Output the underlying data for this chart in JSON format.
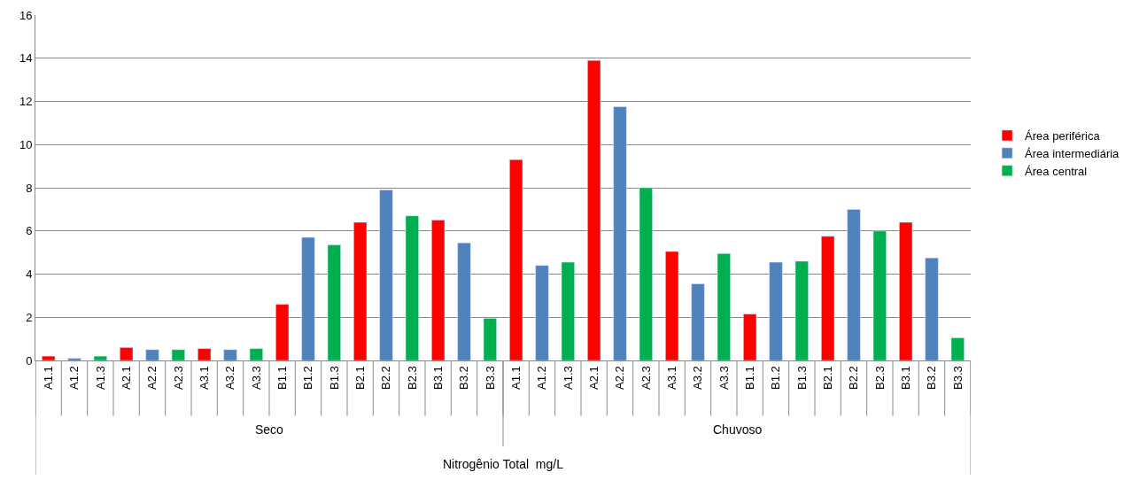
{
  "chart_data": {
    "type": "bar",
    "categories": [
      "A1.1",
      "A1.2",
      "A1.3",
      "A2.1",
      "A2.2",
      "A2.3",
      "A3.1",
      "A3.2",
      "A3.3",
      "B1.1",
      "B1.2",
      "B1.3",
      "B2.1",
      "B2.2",
      "B2.3",
      "B3.1",
      "B3.2",
      "B3.3",
      "A1.1",
      "A1.2",
      "A1.3",
      "A2.1",
      "A2.2",
      "A2.3",
      "A3.1",
      "A3.2",
      "A3.3",
      "B1.1",
      "B1.2",
      "B1.3",
      "B2.1",
      "B2.2",
      "B2.3",
      "B3.1",
      "B3.2",
      "B3.3"
    ],
    "annotations": [
      "Seco",
      "Chuvoso",
      "Nitrogênio Total  mg/L"
    ],
    "series": [
      {
        "name": "Área periférica",
        "color": "#ff0000",
        "values": [
          0.2,
          null,
          null,
          0.6,
          null,
          null,
          0.55,
          null,
          null,
          2.6,
          null,
          null,
          6.4,
          null,
          null,
          6.5,
          null,
          null,
          9.3,
          null,
          null,
          13.9,
          null,
          null,
          5.05,
          null,
          null,
          2.15,
          null,
          null,
          5.75,
          null,
          null,
          6.4,
          null,
          null
        ]
      },
      {
        "name": "Área intermediária",
        "color": "#4f81bd",
        "values": [
          null,
          0.1,
          null,
          null,
          0.5,
          null,
          null,
          0.5,
          null,
          null,
          5.7,
          null,
          null,
          7.9,
          null,
          null,
          5.45,
          null,
          null,
          4.4,
          null,
          null,
          11.75,
          null,
          null,
          3.55,
          null,
          null,
          4.55,
          null,
          null,
          7.0,
          null,
          null,
          4.75,
          null
        ]
      },
      {
        "name": "Área central",
        "color": "#00b050",
        "values": [
          null,
          null,
          0.2,
          null,
          null,
          0.5,
          null,
          null,
          0.55,
          null,
          null,
          5.35,
          null,
          null,
          6.7,
          null,
          null,
          1.95,
          null,
          null,
          4.55,
          null,
          null,
          8.0,
          null,
          null,
          4.95,
          null,
          null,
          4.6,
          null,
          null,
          6.0,
          null,
          null,
          1.05
        ]
      }
    ],
    "ylim": [
      0,
      16
    ],
    "yticks": [
      0,
      2,
      4,
      6,
      8,
      10,
      12,
      14,
      16
    ],
    "grid": "y",
    "legend": "right"
  }
}
